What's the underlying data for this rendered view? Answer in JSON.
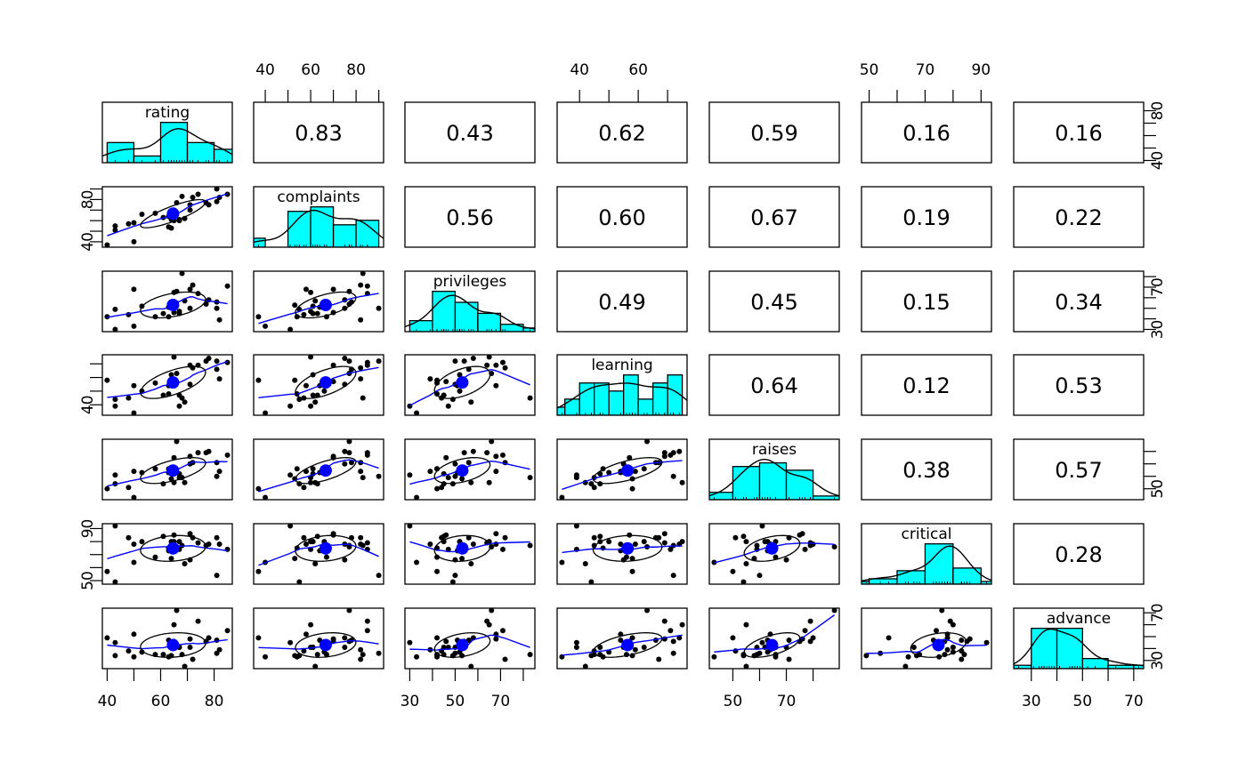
{
  "chart_data": {
    "type": "scatter-matrix",
    "title": "",
    "variables": [
      "rating",
      "complaints",
      "privileges",
      "learning",
      "raises",
      "critical",
      "advance"
    ],
    "data": {
      "rating": [
        43,
        63,
        71,
        61,
        81,
        43,
        58,
        71,
        72,
        67,
        64,
        67,
        69,
        68,
        77,
        81,
        74,
        65,
        65,
        50,
        50,
        64,
        53,
        40,
        63,
        66,
        78,
        48,
        85,
        82
      ],
      "complaints": [
        51,
        64,
        70,
        63,
        78,
        55,
        67,
        75,
        82,
        61,
        53,
        60,
        62,
        83,
        77,
        90,
        85,
        60,
        70,
        58,
        40,
        61,
        66,
        37,
        54,
        77,
        75,
        57,
        85,
        82
      ],
      "privileges": [
        30,
        51,
        68,
        45,
        56,
        49,
        42,
        50,
        72,
        45,
        53,
        47,
        57,
        83,
        54,
        50,
        64,
        65,
        46,
        68,
        33,
        52,
        52,
        42,
        42,
        66,
        58,
        44,
        71,
        39
      ],
      "learning": [
        39,
        54,
        69,
        47,
        66,
        44,
        56,
        55,
        67,
        47,
        58,
        39,
        42,
        45,
        72,
        72,
        69,
        75,
        57,
        54,
        34,
        62,
        50,
        58,
        48,
        63,
        74,
        45,
        71,
        59
      ],
      "raises": [
        61,
        63,
        76,
        54,
        71,
        54,
        66,
        70,
        71,
        62,
        58,
        59,
        55,
        59,
        79,
        60,
        79,
        55,
        75,
        64,
        43,
        66,
        63,
        50,
        66,
        88,
        80,
        51,
        77,
        64
      ],
      "critical": [
        92,
        73,
        86,
        84,
        83,
        49,
        68,
        66,
        83,
        80,
        67,
        74,
        63,
        77,
        77,
        54,
        79,
        80,
        85,
        78,
        64,
        80,
        80,
        57,
        75,
        76,
        78,
        83,
        74,
        78
      ],
      "advance": [
        45,
        47,
        48,
        35,
        47,
        34,
        35,
        41,
        31,
        41,
        34,
        41,
        25,
        35,
        46,
        36,
        63,
        60,
        46,
        52,
        33,
        41,
        37,
        49,
        33,
        72,
        49,
        38,
        55,
        39
      ]
    },
    "correlations": [
      {
        "row": 1,
        "col": 2,
        "value": "0.83"
      },
      {
        "row": 1,
        "col": 3,
        "value": "0.43"
      },
      {
        "row": 1,
        "col": 4,
        "value": "0.62"
      },
      {
        "row": 1,
        "col": 5,
        "value": "0.59"
      },
      {
        "row": 1,
        "col": 6,
        "value": "0.16"
      },
      {
        "row": 1,
        "col": 7,
        "value": "0.16"
      },
      {
        "row": 2,
        "col": 3,
        "value": "0.56"
      },
      {
        "row": 2,
        "col": 4,
        "value": "0.60"
      },
      {
        "row": 2,
        "col": 5,
        "value": "0.67"
      },
      {
        "row": 2,
        "col": 6,
        "value": "0.19"
      },
      {
        "row": 2,
        "col": 7,
        "value": "0.22"
      },
      {
        "row": 3,
        "col": 4,
        "value": "0.49"
      },
      {
        "row": 3,
        "col": 5,
        "value": "0.45"
      },
      {
        "row": 3,
        "col": 6,
        "value": "0.15"
      },
      {
        "row": 3,
        "col": 7,
        "value": "0.34"
      },
      {
        "row": 4,
        "col": 5,
        "value": "0.64"
      },
      {
        "row": 4,
        "col": 6,
        "value": "0.12"
      },
      {
        "row": 4,
        "col": 7,
        "value": "0.53"
      },
      {
        "row": 5,
        "col": 6,
        "value": "0.38"
      },
      {
        "row": 5,
        "col": 7,
        "value": "0.57"
      },
      {
        "row": 6,
        "col": 7,
        "value": "0.28"
      }
    ],
    "hist_binwidth": {
      "rating": 10,
      "complaints": 10,
      "privileges": 10,
      "learning": 5,
      "raises": 10,
      "critical": 10,
      "advance": 10
    },
    "axes": {
      "top": [
        {
          "var": "complaints",
          "labels": [
            40,
            60,
            80
          ]
        },
        {
          "var": "learning",
          "labels": [
            40,
            60
          ]
        },
        {
          "var": "critical",
          "labels": [
            50,
            70,
            90
          ]
        }
      ],
      "bottom": [
        {
          "var": "rating",
          "labels": [
            40,
            60,
            80
          ]
        },
        {
          "var": "privileges",
          "labels": [
            30,
            50,
            70
          ]
        },
        {
          "var": "raises",
          "labels": [
            50,
            70
          ]
        },
        {
          "var": "advance",
          "labels": [
            30,
            50,
            70
          ]
        }
      ],
      "left": [
        {
          "var": "complaints",
          "labels": [
            40,
            80
          ]
        },
        {
          "var": "learning",
          "labels": [
            40
          ]
        },
        {
          "var": "critical",
          "labels": [
            50,
            90
          ]
        }
      ],
      "right": [
        {
          "var": "rating",
          "labels": [
            40,
            80
          ]
        },
        {
          "var": "privileges",
          "labels": [
            30,
            70
          ]
        },
        {
          "var": "raises",
          "labels": [
            50
          ]
        },
        {
          "var": "advance",
          "labels": [
            30,
            70
          ]
        }
      ]
    },
    "colors": {
      "hist": "#00FFFF",
      "smooth": "#0000FF",
      "mean_point": "#0000FF",
      "points": "#000000"
    }
  }
}
